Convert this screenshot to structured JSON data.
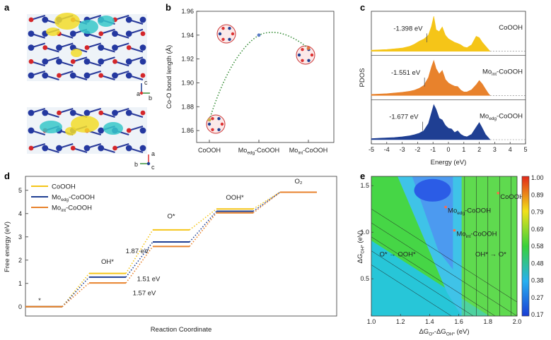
{
  "panels": {
    "a": {
      "label": "a",
      "axes_top": [
        "c",
        "a",
        "b"
      ],
      "axes_bot": [
        "a",
        "b",
        "c"
      ]
    },
    "b": {
      "label": "b"
    },
    "c": {
      "label": "c"
    },
    "d": {
      "label": "d"
    },
    "e": {
      "label": "e"
    }
  },
  "colors": {
    "yellow": "#f5c518",
    "blue": "#1f3f93",
    "orange": "#e8822c",
    "green": "#3a8f3a"
  },
  "chart_data": [
    {
      "id": "b",
      "type": "scatter",
      "ylabel": "Co-O bond length (Å)",
      "categories": [
        "CoOOH",
        "Mo_edg-CoOOH",
        "Mo_int-CoOOH"
      ],
      "category_labels": [
        {
          "main": "CoOOH",
          "sub": "",
          "tail": ""
        },
        {
          "main": "Mo",
          "sub": "edg",
          "tail": "-CoOOH"
        },
        {
          "main": "Mo",
          "sub": "int",
          "tail": "-CoOOH"
        }
      ],
      "values": [
        1.869,
        1.94,
        1.929
      ],
      "point_colors": [
        "#c9b14a",
        "#5a7cc4",
        "#e07840"
      ],
      "ylim": [
        1.85,
        1.96
      ],
      "yticks": [
        "1.86",
        "1.88",
        "1.90",
        "1.92",
        "1.94",
        "1.96"
      ],
      "line": "dotted green guide through points"
    },
    {
      "id": "c",
      "type": "area",
      "xlabel": "Energy (eV)",
      "ylabel": "PDOS",
      "xlim": [
        -5,
        5
      ],
      "xticks": [
        "-5",
        "-4",
        "-3",
        "-2",
        "-1",
        "0",
        "1",
        "2",
        "3",
        "4",
        "5"
      ],
      "series": [
        {
          "name_main": "CoOOH",
          "name_sub": "",
          "name_tail": "",
          "color": "#f5c518",
          "center_label": "-1.398 eV",
          "center": -1.398,
          "x": [
            -5,
            -4.5,
            -4,
            -3.5,
            -3,
            -2.5,
            -2.2,
            -1.9,
            -1.6,
            -1.3,
            -1.1,
            -0.95,
            -0.8,
            -0.6,
            -0.4,
            -0.2,
            0,
            0.2,
            0.4,
            0.6,
            0.8,
            1.0,
            1.2,
            1.5,
            1.8,
            2.0,
            2.2,
            2.4,
            2.6,
            2.7
          ],
          "y": [
            0.03,
            0.04,
            0.05,
            0.07,
            0.09,
            0.14,
            0.2,
            0.28,
            0.34,
            0.45,
            0.7,
            0.98,
            0.6,
            0.55,
            0.68,
            0.45,
            0.35,
            0.3,
            0.25,
            0.22,
            0.18,
            0.12,
            0.1,
            0.18,
            0.42,
            0.38,
            0.25,
            0.15,
            0.05,
            0.0
          ]
        },
        {
          "name_main": "Mo",
          "name_sub": "int",
          "name_tail": "-CoOOH",
          "color": "#e8822c",
          "center_label": "-1.551 eV",
          "center": -1.551,
          "x": [
            -5,
            -4.5,
            -4,
            -3.5,
            -3,
            -2.5,
            -2.2,
            -1.9,
            -1.6,
            -1.3,
            -1.1,
            -0.95,
            -0.8,
            -0.6,
            -0.4,
            -0.2,
            0,
            0.2,
            0.4,
            0.6,
            0.8,
            1.0,
            1.2,
            1.5,
            1.8,
            2.0,
            2.2,
            2.4,
            2.6,
            2.7
          ],
          "y": [
            0.03,
            0.04,
            0.05,
            0.07,
            0.09,
            0.12,
            0.15,
            0.2,
            0.28,
            0.5,
            0.8,
            0.98,
            0.75,
            0.6,
            0.7,
            0.45,
            0.35,
            0.3,
            0.26,
            0.25,
            0.15,
            0.1,
            0.1,
            0.16,
            0.3,
            0.42,
            0.32,
            0.18,
            0.05,
            0.0
          ]
        },
        {
          "name_main": "Mo",
          "name_sub": "edg",
          "name_tail": "-CoOOH",
          "color": "#1f3f93",
          "center_label": "-1.677 eV",
          "center": -1.677,
          "x": [
            -5,
            -4.5,
            -4,
            -3.5,
            -3,
            -2.5,
            -2.2,
            -1.9,
            -1.6,
            -1.3,
            -1.1,
            -0.95,
            -0.8,
            -0.6,
            -0.4,
            -0.2,
            0,
            0.2,
            0.4,
            0.6,
            0.8,
            1.0,
            1.2,
            1.5,
            1.8,
            2.0,
            2.2,
            2.4,
            2.6,
            2.7
          ],
          "y": [
            0.03,
            0.04,
            0.05,
            0.06,
            0.08,
            0.11,
            0.14,
            0.18,
            0.25,
            0.45,
            0.75,
            0.98,
            0.85,
            0.6,
            0.55,
            0.4,
            0.32,
            0.3,
            0.2,
            0.25,
            0.15,
            0.1,
            0.08,
            0.15,
            0.35,
            0.48,
            0.32,
            0.15,
            0.05,
            0.0
          ]
        }
      ]
    },
    {
      "id": "d",
      "type": "line",
      "xlabel": "Reaction Coordinate",
      "ylabel": "Free energy (eV)",
      "ylim": [
        -0.4,
        5.6
      ],
      "yticks": [
        "0",
        "1",
        "2",
        "3",
        "4",
        "5"
      ],
      "steps": [
        "*",
        "OH*",
        "O*",
        "OOH*",
        "O₂"
      ],
      "series": [
        {
          "name_main": "CoOOH",
          "name_sub": "",
          "name_tail": "",
          "color": "#f5c518",
          "values": [
            0,
            1.43,
            3.3,
            4.2,
            4.92
          ]
        },
        {
          "name_main": "Mo",
          "name_sub": "edg",
          "name_tail": "-CoOOH",
          "color": "#1f3f93",
          "values": [
            0,
            1.27,
            2.78,
            4.1,
            4.92
          ]
        },
        {
          "name_main": "Mo",
          "name_sub": "int",
          "name_tail": "-CoOOH",
          "color": "#e8822c",
          "values": [
            0,
            1.02,
            2.59,
            4.03,
            4.92
          ]
        }
      ],
      "annotations": [
        {
          "text": "1.87 eV",
          "color": "#e0b000"
        },
        {
          "text": "1.51 eV",
          "color": "#1f3f93"
        },
        {
          "text": "1.57 eV",
          "color": "#e8822c"
        }
      ]
    },
    {
      "id": "e",
      "type": "heatmap",
      "xlabel_parts": [
        "ΔG",
        "O*",
        "-ΔG",
        "OH*",
        " (eV)"
      ],
      "ylabel_parts": [
        "ΔG",
        "OH*",
        " (eV)"
      ],
      "xlim": [
        1.0,
        2.0
      ],
      "ylim": [
        0.1,
        1.6
      ],
      "xticks": [
        "1.0",
        "1.2",
        "1.4",
        "1.6",
        "1.8",
        "2.0"
      ],
      "yticks": [
        "0.5",
        "1.0",
        "1.5"
      ],
      "colorbar_ticks": [
        "1.00",
        "0.89",
        "0.79",
        "0.69",
        "0.58",
        "0.48",
        "0.38",
        "0.27",
        "0.17"
      ],
      "region_labels": [
        {
          "text": "O* → OOH*"
        },
        {
          "text": "OH* → O*"
        }
      ],
      "points": [
        {
          "label": "CoOOH",
          "label_main": "CoOOH",
          "label_sub": "",
          "label_tail": "",
          "x": 1.87,
          "y": 1.42
        },
        {
          "label": "Mo_edg-CoOOH",
          "label_main": "Mo",
          "label_sub": "edg",
          "label_tail": "-CoOOH",
          "x": 1.51,
          "y": 1.27
        },
        {
          "label": "Mo_int-CoOOH",
          "label_main": "Mo",
          "label_sub": "int",
          "label_tail": "-CoOOH",
          "x": 1.57,
          "y": 1.02
        }
      ]
    }
  ]
}
